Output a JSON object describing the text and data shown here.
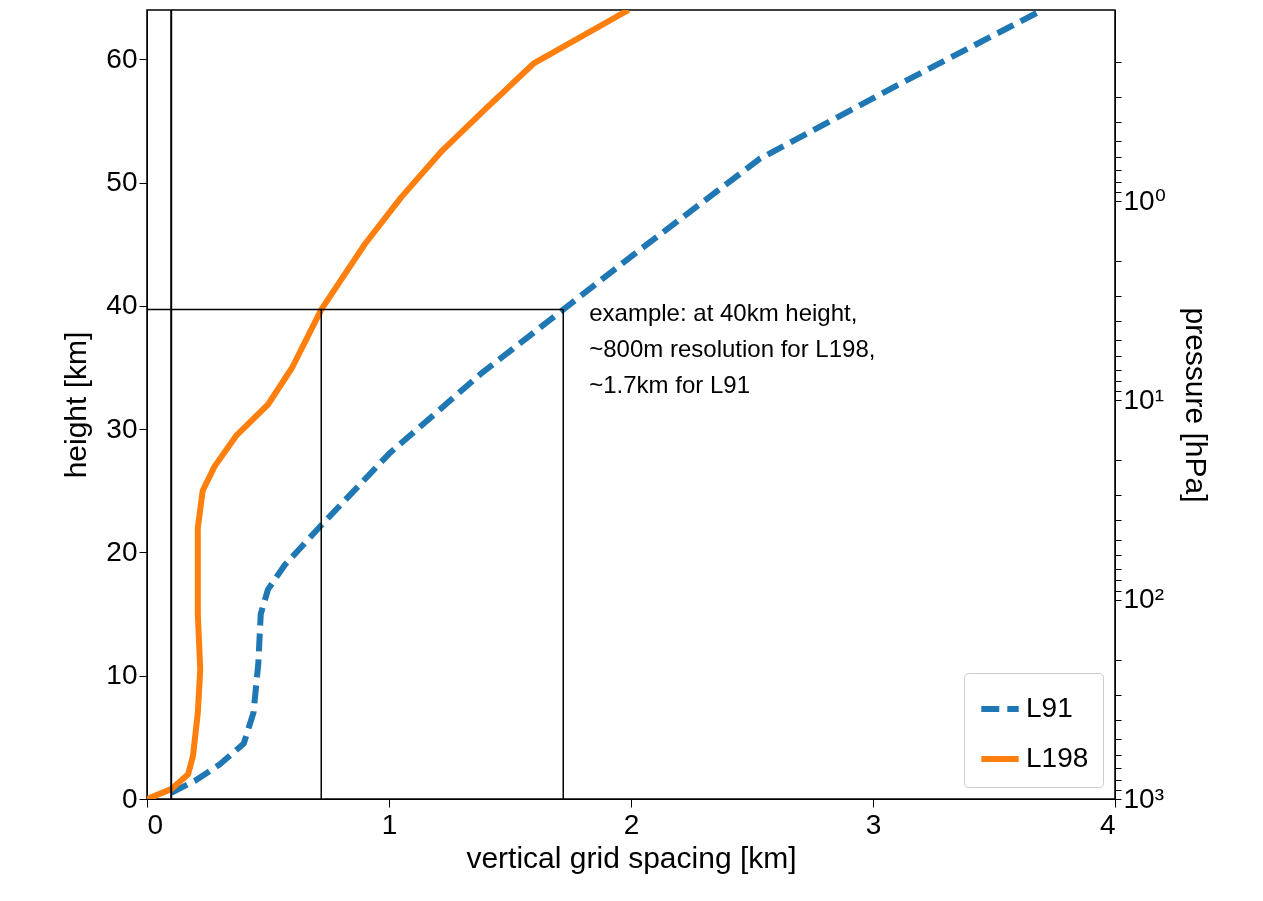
{
  "chart_data": {
    "type": "line",
    "xlabel": "vertical grid spacing [km]",
    "ylabel": "height [km]",
    "y2label": "pressure [hPa]",
    "xlim": [
      0,
      4
    ],
    "xticks": [
      0,
      1,
      2,
      3,
      4
    ],
    "ylim": [
      0,
      64
    ],
    "yticks": [
      0,
      10,
      20,
      30,
      40,
      50,
      60
    ],
    "y2lim": [
      1000,
      0.11
    ],
    "log": "y2",
    "y2ticks": [
      {
        "value": 0.2,
        "label": null
      },
      {
        "value": 0.3,
        "label": null
      },
      {
        "value": 0.4,
        "label": null
      },
      {
        "value": 0.5,
        "label": null
      },
      {
        "value": 0.6,
        "label": null
      },
      {
        "value": 0.7,
        "label": null
      },
      {
        "value": 0.8,
        "label": null
      },
      {
        "value": 0.9,
        "label": null
      },
      {
        "value": 1,
        "label": "10⁰"
      },
      {
        "value": 2,
        "label": null
      },
      {
        "value": 3,
        "label": null
      },
      {
        "value": 4,
        "label": null
      },
      {
        "value": 5,
        "label": null
      },
      {
        "value": 6,
        "label": null
      },
      {
        "value": 7,
        "label": null
      },
      {
        "value": 8,
        "label": null
      },
      {
        "value": 9,
        "label": null
      },
      {
        "value": 10,
        "label": "10¹"
      },
      {
        "value": 20,
        "label": null
      },
      {
        "value": 30,
        "label": null
      },
      {
        "value": 40,
        "label": null
      },
      {
        "value": 50,
        "label": null
      },
      {
        "value": 60,
        "label": null
      },
      {
        "value": 70,
        "label": null
      },
      {
        "value": 80,
        "label": null
      },
      {
        "value": 90,
        "label": null
      },
      {
        "value": 100,
        "label": "10²"
      },
      {
        "value": 200,
        "label": null
      },
      {
        "value": 300,
        "label": null
      },
      {
        "value": 400,
        "label": null
      },
      {
        "value": 500,
        "label": null
      },
      {
        "value": 600,
        "label": null
      },
      {
        "value": 700,
        "label": null
      },
      {
        "value": 800,
        "label": null
      },
      {
        "value": 900,
        "label": null
      },
      {
        "value": 1000,
        "label": "10³"
      }
    ],
    "grid": false,
    "legend": "bottom right",
    "series": [
      {
        "name": "L91",
        "color": "#1f77b4",
        "line_style": "dashed",
        "x": [
          0.1,
          0.2,
          0.3,
          0.4,
          0.44,
          0.46,
          0.47,
          0.5,
          0.57,
          0.72,
          1.0,
          1.38,
          1.72,
          2.04,
          2.53,
          3.11,
          3.7
        ],
        "values": [
          0.5,
          1.5,
          2.8,
          4.5,
          7,
          11,
          15,
          17,
          19,
          22.2,
          28,
          34.5,
          39.7,
          44.6,
          51.9,
          58,
          64
        ]
      },
      {
        "name": "L198",
        "color": "#ff7f0e",
        "line_style": "solid",
        "x": [
          0,
          0.1,
          0.17,
          0.19,
          0.21,
          0.22,
          0.21,
          0.21,
          0.23,
          0.28,
          0.37,
          0.5,
          0.6,
          0.72,
          0.9,
          1.05,
          1.22,
          1.4,
          1.6,
          1.99
        ],
        "values": [
          0,
          0.8,
          2.0,
          3.5,
          7,
          10.5,
          15,
          22,
          25,
          27,
          29.5,
          32,
          35,
          39.7,
          45,
          48.8,
          52.6,
          56,
          59.7,
          64
        ]
      },
      {
        "color": "#000000",
        "line_style": "solid",
        "x": [
          0,
          1.72
        ],
        "values": [
          39.7,
          39.7
        ]
      },
      {
        "color": "#000000",
        "line_style": "solid",
        "x": [
          0.72,
          0.72
        ],
        "values": [
          0,
          39.7
        ]
      },
      {
        "color": "#000000",
        "line_style": "solid",
        "x": [
          1.72,
          1.72
        ],
        "values": [
          0,
          39.7
        ]
      }
    ],
    "ref_lines": [
      {
        "axis": "x",
        "value": 0.1,
        "color": "#000000"
      }
    ],
    "annotations": [
      {
        "text": "example: at 40km height,\n~800m resolution for L198,\n~1.7km for L91",
        "x": 1.72,
        "y": 39.7
      }
    ]
  }
}
